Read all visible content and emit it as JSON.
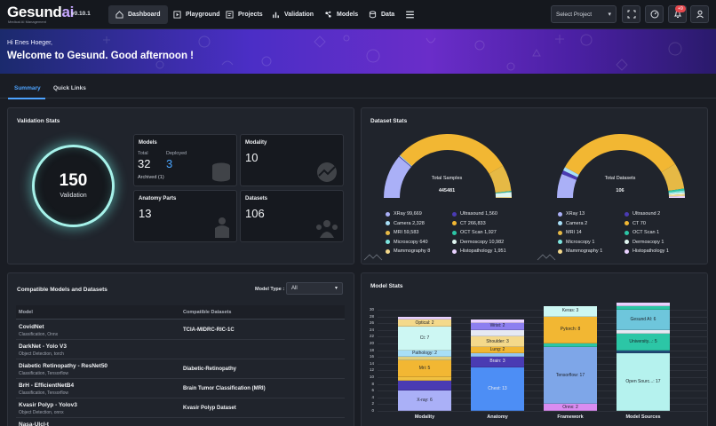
{
  "nav": {
    "logo_main": "Gesund",
    "logo_ai": "ai",
    "tagline": "Medical AI Management",
    "version": "v0.10.1",
    "items": [
      "Dashboard",
      "Playground",
      "Projects",
      "Validation",
      "Models",
      "Data"
    ],
    "select_project": "Select Project",
    "notification_count": "+9"
  },
  "banner": {
    "greeting": "Hi Enes Hoeger,",
    "welcome": "Welcome to Gesund. Good afternoon !"
  },
  "tabs": [
    "Summary",
    "Quick Links"
  ],
  "validation": {
    "title": "Validation Stats",
    "total": "150",
    "total_label": "Validation",
    "models": {
      "title": "Models",
      "total_label": "Total",
      "total": "32",
      "deployed_label": "Deployed",
      "deployed": "3",
      "archived": "Archived (1)"
    },
    "modality": {
      "title": "Modality",
      "value": "10"
    },
    "anatomy": {
      "title": "Anatomy Parts",
      "value": "13"
    },
    "datasets": {
      "title": "Datasets",
      "value": "106"
    }
  },
  "dataset_stats": {
    "title": "Dataset Stats",
    "samples": {
      "label": "Total Samples",
      "value": "445481"
    },
    "datasets": {
      "label": "Total Datasets",
      "value": "106"
    },
    "colors": [
      "#aab0f7",
      "#4a3bb3",
      "#a8dff8",
      "#f2b733",
      "#e6b945",
      "#2cc6a6",
      "#7ee6e0",
      "#dff6f0",
      "#f4d98b",
      "#e9d2ff"
    ],
    "legend_left": [
      "XRay 99,669",
      "Ultrasound 1,560",
      "Camera 2,328",
      "CT 266,833",
      "MRI 59,583",
      "OCT Scan 1,927",
      "Microscopy 640",
      "Dermoscopy 10,982",
      "Mammography 8",
      "Histopathology 1,951"
    ],
    "legend_right": [
      "XRay 13",
      "Ultrasound 2",
      "Camera 2",
      "CT 70",
      "MRI 14",
      "OCT Scan 1",
      "Microscopy 1",
      "Dermoscopy 1",
      "Mammography 1",
      "Histopathology 1"
    ]
  },
  "compat": {
    "title": "Compatible Models and Datasets",
    "type_label": "Model Type :",
    "type_value": "All",
    "headers": [
      "Model",
      "Compatible Datasets"
    ],
    "rows": [
      {
        "model": "CovidNet",
        "sub": "Classification, Onnx",
        "dataset": "TCIA-MIDRC-RIC-1C"
      },
      {
        "model": "DarkNet - Yolo V3",
        "sub": "Object Detection, torch",
        "dataset": ""
      },
      {
        "model": "Diabetic Retinopathy - ResNet50",
        "sub": "Classification, Tensorflow",
        "dataset": "Diabetic-Retinopathy"
      },
      {
        "model": "BrH - EfficientNetB4",
        "sub": "Classification, Tensorflow",
        "dataset": "Brain Tumor Classification (MRI)"
      },
      {
        "model": "Kvasir Polyp - Yolov3",
        "sub": "Object Detection, onnx",
        "dataset": "Kvasir Polyp Dataset"
      },
      {
        "model": "Nasa-Ulcl-t",
        "sub": "",
        "dataset": ""
      }
    ]
  },
  "model_stats": {
    "title": "Model Stats",
    "chart_data": {
      "type": "bar",
      "stacked": true,
      "ylim": [
        0,
        30
      ],
      "yticks": [
        0,
        2,
        4,
        6,
        8,
        10,
        12,
        14,
        16,
        18,
        20,
        22,
        24,
        26,
        28,
        30
      ],
      "categories": [
        "Modality",
        "Anatomy",
        "Framework",
        "Model Sources"
      ],
      "stacks": [
        [
          {
            "label": "X-ray: 6",
            "value": 6,
            "color": "#aab0f7"
          },
          {
            "label": "",
            "value": 3,
            "color": "#4a3bb3"
          },
          {
            "label": "",
            "value": 1,
            "color": "#f0c040"
          },
          {
            "label": "Mri: 5",
            "value": 5,
            "color": "#f2b733"
          },
          {
            "label": "",
            "value": 1,
            "color": "#e0d080"
          },
          {
            "label": "Pathology: 2",
            "value": 2,
            "color": "#a8dff8"
          },
          {
            "label": "Ct: 7",
            "value": 7,
            "color": "#cdf7f3"
          },
          {
            "label": "Optical: 2",
            "value": 2,
            "color": "#f4d98b"
          },
          {
            "label": "",
            "value": 1,
            "color": "#e9d2ff"
          }
        ],
        [
          {
            "label": "Chest: 13",
            "value": 13,
            "color": "#4d8ef5"
          },
          {
            "label": "Brain: 3",
            "value": 3,
            "color": "#4a3bb3"
          },
          {
            "label": "",
            "value": 1,
            "color": "#93c5f3"
          },
          {
            "label": "Lung: 2",
            "value": 2,
            "color": "#f2b733"
          },
          {
            "label": "Shoulder: 3",
            "value": 3,
            "color": "#f4d98b"
          },
          {
            "label": "",
            "value": 2,
            "color": "#e6e9f3"
          },
          {
            "label": "Wrist: 2",
            "value": 2,
            "color": "#8d7ff0"
          },
          {
            "label": "",
            "value": 1,
            "color": "#e9d2ff"
          }
        ],
        [
          {
            "label": "Onnx: 2",
            "value": 2,
            "color": "#d98cf0"
          },
          {
            "label": "Tensorflow: 17",
            "value": 17,
            "color": "#7ea6e8"
          },
          {
            "label": "",
            "value": 1,
            "color": "#2cc6a6"
          },
          {
            "label": "Pytorch: 8",
            "value": 8,
            "color": "#f2b733"
          },
          {
            "label": "Keras: 3",
            "value": 3,
            "color": "#cdf7f3"
          }
        ],
        [
          {
            "label": "Open Sourc...: 17",
            "value": 17,
            "color": "#b5f2ee"
          },
          {
            "label": "",
            "value": 1,
            "color": "#1f4c78"
          },
          {
            "label": "University...: 5",
            "value": 5,
            "color": "#2cc6a6"
          },
          {
            "label": "",
            "value": 1,
            "color": "#e6e9f3"
          },
          {
            "label": "Gesund AI: 6",
            "value": 6,
            "color": "#6ec6dc"
          },
          {
            "label": "",
            "value": 1,
            "color": "#2cc6a6"
          },
          {
            "label": "",
            "value": 1,
            "color": "#e9d2ff"
          }
        ]
      ]
    }
  }
}
